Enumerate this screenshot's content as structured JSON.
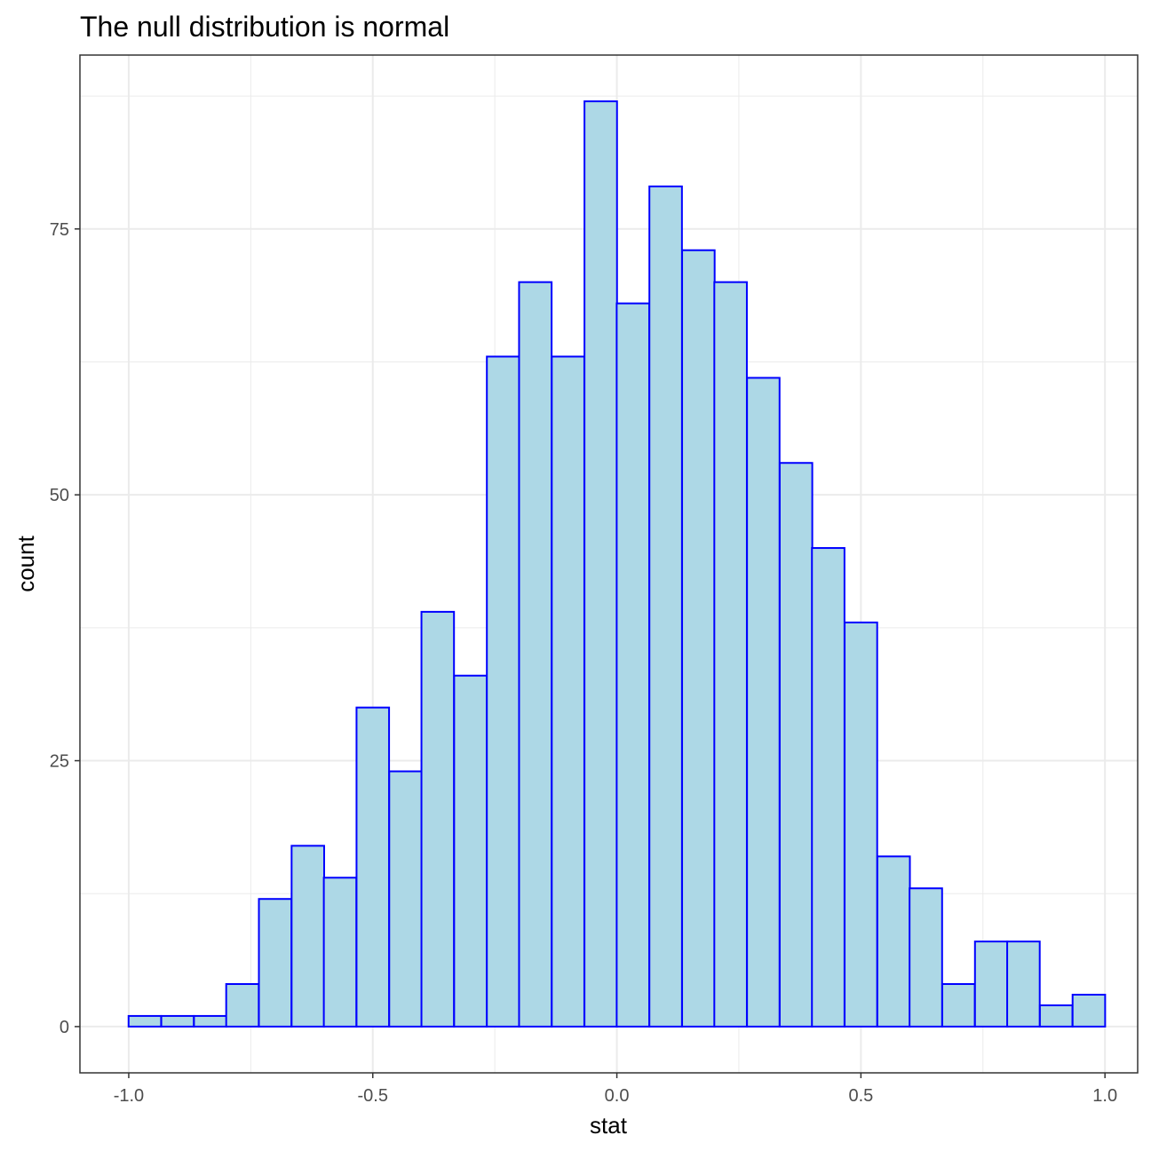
{
  "chart_data": {
    "type": "bar",
    "title": "The null distribution is normal",
    "xlabel": "stat",
    "ylabel": "count",
    "bin_width": 0.06667,
    "bin_centers": [
      -0.967,
      -0.9,
      -0.833,
      -0.767,
      -0.7,
      -0.633,
      -0.567,
      -0.5,
      -0.433,
      -0.367,
      -0.3,
      -0.233,
      -0.167,
      -0.1,
      -0.033,
      0.033,
      0.1,
      0.167,
      0.233,
      0.3,
      0.367,
      0.433,
      0.5,
      0.567,
      0.633,
      0.7,
      0.767,
      0.833,
      0.9,
      0.967
    ],
    "values": [
      1,
      1,
      1,
      4,
      12,
      17,
      14,
      30,
      24,
      39,
      33,
      63,
      70,
      63,
      87,
      68,
      79,
      73,
      70,
      61,
      53,
      45,
      38,
      16,
      13,
      4,
      8,
      8,
      2,
      3
    ],
    "x_ticks": [
      -1.0,
      -0.5,
      0.0,
      0.5,
      1.0
    ],
    "x_tick_labels": [
      "-1.0",
      "-0.5",
      "0.0",
      "0.5",
      "1.0"
    ],
    "y_ticks": [
      0,
      25,
      50,
      75
    ],
    "y_tick_labels": [
      "0",
      "25",
      "50",
      "75"
    ],
    "xlim": [
      -1.1,
      1.067
    ],
    "ylim": [
      -4.35,
      91.35
    ],
    "grid": true,
    "bar_fill": "#add8e6",
    "bar_stroke": "#0000ff",
    "grid_color": "#ebebeb",
    "panel_border_color": "#333333"
  }
}
